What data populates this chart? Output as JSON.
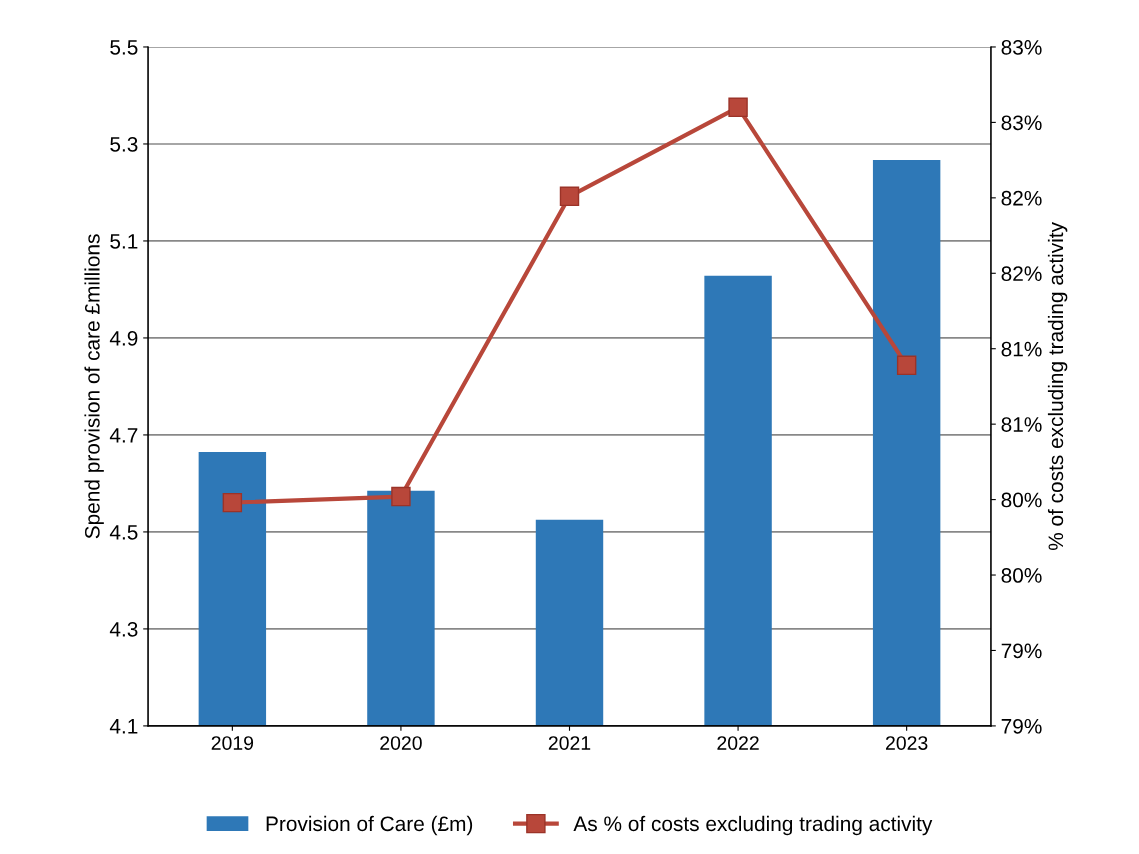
{
  "chart_data": {
    "type": "bar",
    "categories": [
      "2019",
      "2020",
      "2021",
      "2022",
      "2023"
    ],
    "ylabel": "Spend provision of care £millions",
    "y2label": "% of costs excluding trading activity",
    "ylim": [
      4.1,
      5.5
    ],
    "yticks": [
      4.1,
      4.3,
      4.5,
      4.7,
      4.9,
      5.1,
      5.3,
      5.5
    ],
    "y2lim": [
      78.5,
      83.0
    ],
    "y2ticks": [
      {
        "value": 78.5,
        "label": "79%"
      },
      {
        "value": 79.0,
        "label": "79%"
      },
      {
        "value": 79.5,
        "label": "80%"
      },
      {
        "value": 80.0,
        "label": "80%"
      },
      {
        "value": 80.5,
        "label": "81%"
      },
      {
        "value": 81.0,
        "label": "81%"
      },
      {
        "value": 81.5,
        "label": "82%"
      },
      {
        "value": 82.0,
        "label": "82%"
      },
      {
        "value": 82.5,
        "label": "83%"
      },
      {
        "value": 83.0,
        "label": "83%"
      }
    ],
    "grid": "y",
    "legend": "bottom",
    "marker": "square",
    "series": [
      {
        "name": "Provision of Care (£m)",
        "color": "#2e78b7",
        "values": [
          4.665,
          4.585,
          4.525,
          5.028,
          5.267
        ]
      },
      {
        "name": "As % of costs excluding trading activity",
        "type": "line",
        "axis": "y2",
        "color": "#b8473a",
        "values": [
          79.98,
          80.02,
          82.01,
          82.6,
          80.89
        ]
      }
    ]
  }
}
